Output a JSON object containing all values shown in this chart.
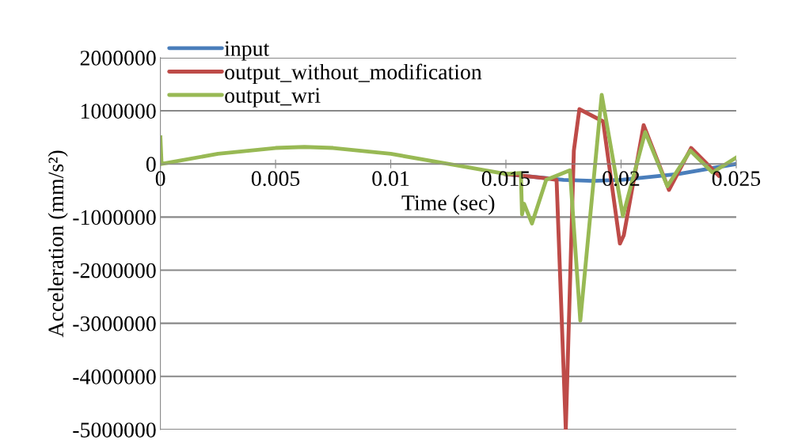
{
  "chart_data": {
    "type": "line",
    "xlabel": "Time (sec)",
    "ylabel": "Acceleration (mm/s²)",
    "xlim": [
      0,
      0.025
    ],
    "xticks": [
      0,
      0.005,
      0.01,
      0.015,
      0.02,
      0.025
    ],
    "ylim": [
      -5000000,
      2000000
    ],
    "yticks": [
      -5000000,
      -4000000,
      -3000000,
      -2000000,
      -1000000,
      0,
      1000000,
      2000000
    ],
    "grid": "y",
    "legend": "top left",
    "marker": "none",
    "line_style": "solid",
    "series": [
      {
        "name": "input",
        "color": "#4a7ebb",
        "x": [
          0.015,
          0.0175,
          0.01875,
          0.02,
          0.0225,
          0.025
        ],
        "values": [
          -190000,
          -300000,
          -320000,
          -300000,
          -190000,
          0
        ]
      },
      {
        "name": "output_without_modification",
        "color": "#be4b48",
        "x": [
          0.015,
          0.0155,
          0.01675,
          0.0172,
          0.0176,
          0.01795,
          0.01819,
          0.01922,
          0.01995,
          0.02012,
          0.02098,
          0.02208,
          0.02304,
          0.02424
        ],
        "values": [
          -190000,
          -210000,
          -270000,
          -300000,
          -5000000,
          250000,
          1030000,
          800000,
          -1500000,
          -1340000,
          730000,
          -490000,
          300000,
          -220000
        ]
      },
      {
        "name": "output_wri",
        "color": "#98b954",
        "x": [
          0,
          5e-05,
          0.0025,
          0.005,
          0.00625,
          0.0075,
          0.01,
          0.0125,
          0.015,
          0.01565,
          0.0157,
          0.01579,
          0.01613,
          0.01675,
          0.0171,
          0.01778,
          0.01823,
          0.01916,
          0.02008,
          0.02105,
          0.02201,
          0.02301,
          0.02397,
          0.025
        ],
        "values": [
          500000,
          0,
          190000,
          300000,
          320000,
          300000,
          190000,
          0,
          -190000,
          -170000,
          -950000,
          -750000,
          -1120000,
          -300000,
          -240000,
          -120000,
          -2950000,
          1300000,
          -980000,
          600000,
          -420000,
          250000,
          -160000,
          120000
        ]
      }
    ]
  }
}
